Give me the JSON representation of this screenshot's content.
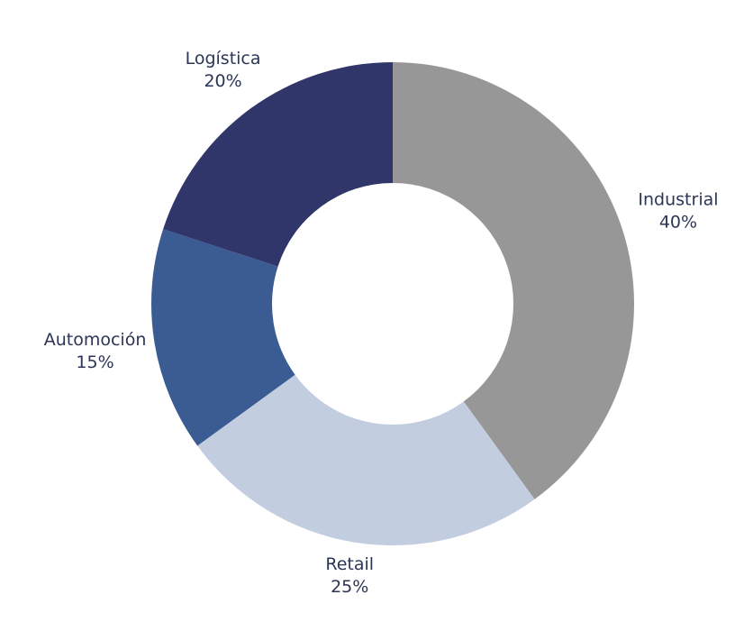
{
  "chart_data": {
    "type": "donut",
    "categories": [
      "Industrial",
      "Retail",
      "Automoción",
      "Logística"
    ],
    "values": [
      40,
      25,
      15,
      20
    ],
    "value_labels": [
      "40%",
      "25%",
      "15%",
      "20%"
    ],
    "colors": [
      "#979797",
      "#c3cde0",
      "#3a5c92",
      "#30366a"
    ]
  }
}
